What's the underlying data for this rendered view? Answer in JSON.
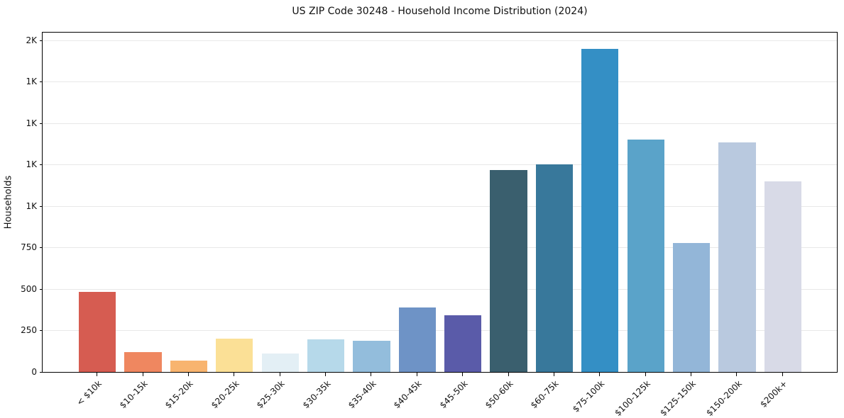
{
  "figure": {
    "title": "US ZIP Code 30248 - Household Income Distribution (2024)"
  },
  "chart_data": {
    "type": "bar",
    "title": "US ZIP Code 30248 - Household Income Distribution (2024)",
    "xlabel": "",
    "ylabel": "Households",
    "categories": [
      "< $10k",
      "$10-15k",
      "$15-20k",
      "$20-25k",
      "$25-30k",
      "$30-35k",
      "$35-40k",
      "$40-45k",
      "$45-50k",
      "$50-60k",
      "$60-75k",
      "$75-100k",
      "$100-125k",
      "$125-150k",
      "$150-200k",
      "$200k+"
    ],
    "values": [
      483,
      121,
      70,
      200,
      111,
      196,
      188,
      388,
      341,
      1215,
      1250,
      1949,
      1399,
      776,
      1382,
      1147
    ],
    "bar_colors": [
      "#d65c51",
      "#ef8760",
      "#f8b46f",
      "#fbe096",
      "#e3eff5",
      "#b6d9ea",
      "#93bddc",
      "#6e93c6",
      "#5a5ba9",
      "#3a5f6e",
      "#38789b",
      "#348fc5",
      "#5aa3c9",
      "#93b6d8",
      "#b9c9df",
      "#d8dae7"
    ],
    "ylim": [
      0,
      2045
    ],
    "yticks": [
      {
        "value": 0,
        "label": "0"
      },
      {
        "value": 250,
        "label": "250"
      },
      {
        "value": 500,
        "label": "500"
      },
      {
        "value": 750,
        "label": "750"
      },
      {
        "value": 1000,
        "label": "1K"
      },
      {
        "value": 1250,
        "label": "1K"
      },
      {
        "value": 1500,
        "label": "1K"
      },
      {
        "value": 1750,
        "label": "1K"
      },
      {
        "value": 2000,
        "label": "2K"
      }
    ],
    "grid": "horizontal-only",
    "legend": "none",
    "colors": {
      "spine": "#000000",
      "grid": "#e8e8e8",
      "text": "#111111",
      "background": "#ffffff"
    }
  }
}
